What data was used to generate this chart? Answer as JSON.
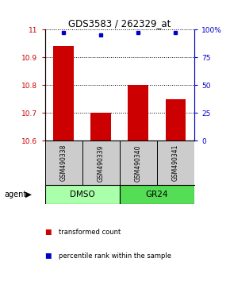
{
  "title": "GDS3583 / 262329_at",
  "samples": [
    "GSM490338",
    "GSM490339",
    "GSM490340",
    "GSM490341"
  ],
  "bar_values": [
    10.94,
    10.7,
    10.8,
    10.75
  ],
  "percentile_values": [
    97,
    95,
    97,
    97
  ],
  "ylim_left": [
    10.6,
    11.0
  ],
  "ylim_right": [
    0,
    100
  ],
  "yticks_left": [
    10.6,
    10.7,
    10.8,
    10.9,
    11.0
  ],
  "ytick_labels_left": [
    "10.6",
    "10.7",
    "10.8",
    "10.9",
    "11"
  ],
  "yticks_right": [
    0,
    25,
    50,
    75,
    100
  ],
  "ytick_labels_right": [
    "0",
    "25",
    "50",
    "75",
    "100%"
  ],
  "bar_color": "#cc0000",
  "dot_color": "#0000cc",
  "bar_bottom": 10.6,
  "groups": [
    {
      "label": "DMSO",
      "samples": [
        0,
        1
      ],
      "color": "#aaffaa"
    },
    {
      "label": "GR24",
      "samples": [
        2,
        3
      ],
      "color": "#55dd55"
    }
  ],
  "sample_box_color": "#cccccc",
  "legend_bar_label": "transformed count",
  "legend_dot_label": "percentile rank within the sample",
  "agent_label": "agent",
  "figure_bg": "#ffffff"
}
